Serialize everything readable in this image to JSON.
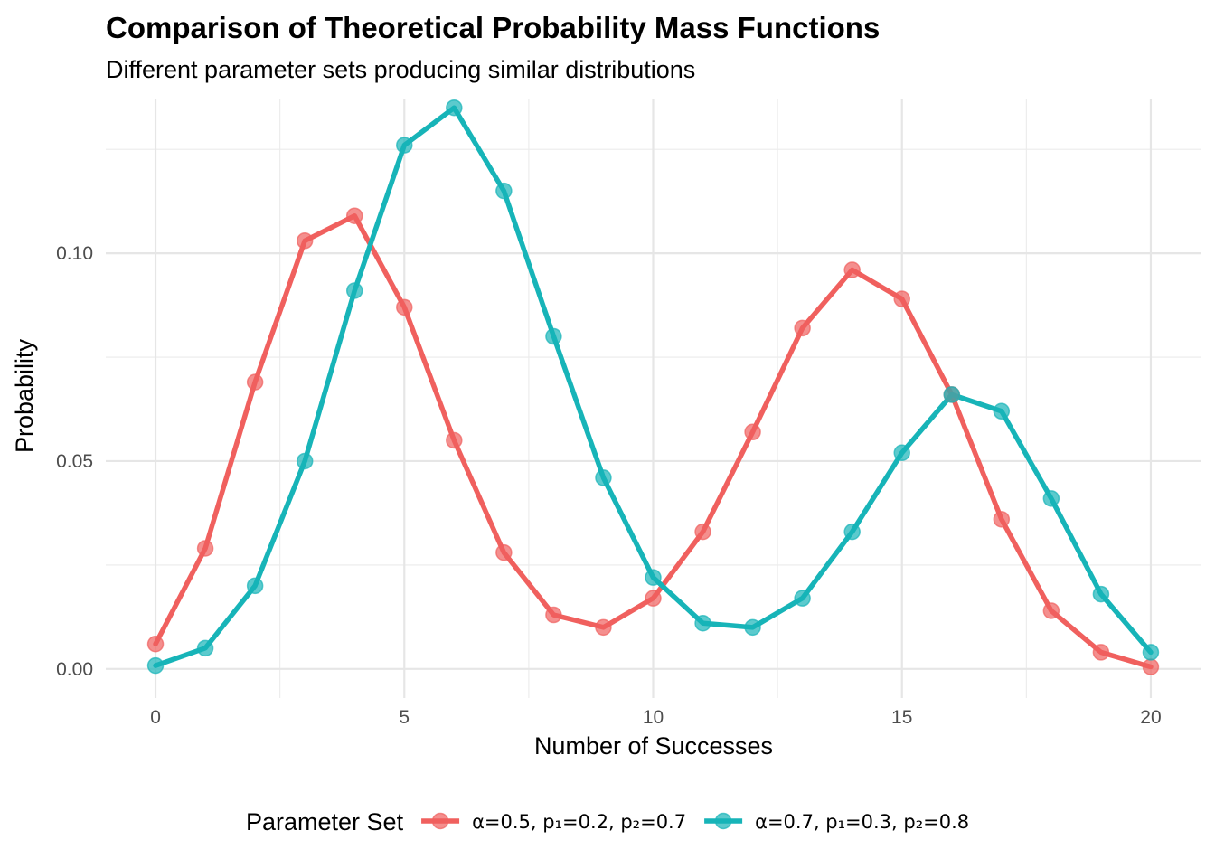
{
  "chart_data": {
    "type": "line",
    "title": "Comparison of Theoretical Probability Mass Functions",
    "subtitle": "Different parameter sets producing similar distributions",
    "xlabel": "Number of Successes",
    "ylabel": "Probability",
    "xlim": [
      -1,
      21
    ],
    "ylim": [
      -0.007,
      0.137
    ],
    "x_ticks": [
      0,
      5,
      10,
      15,
      20
    ],
    "x_tick_labels": [
      "0",
      "5",
      "10",
      "15",
      "20"
    ],
    "y_ticks": [
      0.0,
      0.05,
      0.1
    ],
    "y_tick_labels": [
      "0.00",
      "0.05",
      "0.10"
    ],
    "grid": true,
    "legend": {
      "title": "Parameter Set",
      "position": "bottom"
    },
    "x": [
      0,
      1,
      2,
      3,
      4,
      5,
      6,
      7,
      8,
      9,
      10,
      11,
      12,
      13,
      14,
      15,
      16,
      17,
      18,
      19,
      20
    ],
    "series": [
      {
        "name": "α=0.5, p₁=0.2, p₂=0.7",
        "color": "#F0605E",
        "values": [
          0.006,
          0.029,
          0.069,
          0.103,
          0.109,
          0.087,
          0.055,
          0.028,
          0.013,
          0.01,
          0.017,
          0.033,
          0.057,
          0.082,
          0.096,
          0.089,
          0.066,
          0.036,
          0.014,
          0.004,
          0.0005
        ]
      },
      {
        "name": "α=0.7, p₁=0.3, p₂=0.8",
        "color": "#17B4B8",
        "values": [
          0.0008,
          0.005,
          0.02,
          0.05,
          0.091,
          0.126,
          0.135,
          0.115,
          0.08,
          0.046,
          0.022,
          0.011,
          0.01,
          0.017,
          0.033,
          0.052,
          0.066,
          0.062,
          0.041,
          0.018,
          0.004
        ]
      }
    ]
  }
}
